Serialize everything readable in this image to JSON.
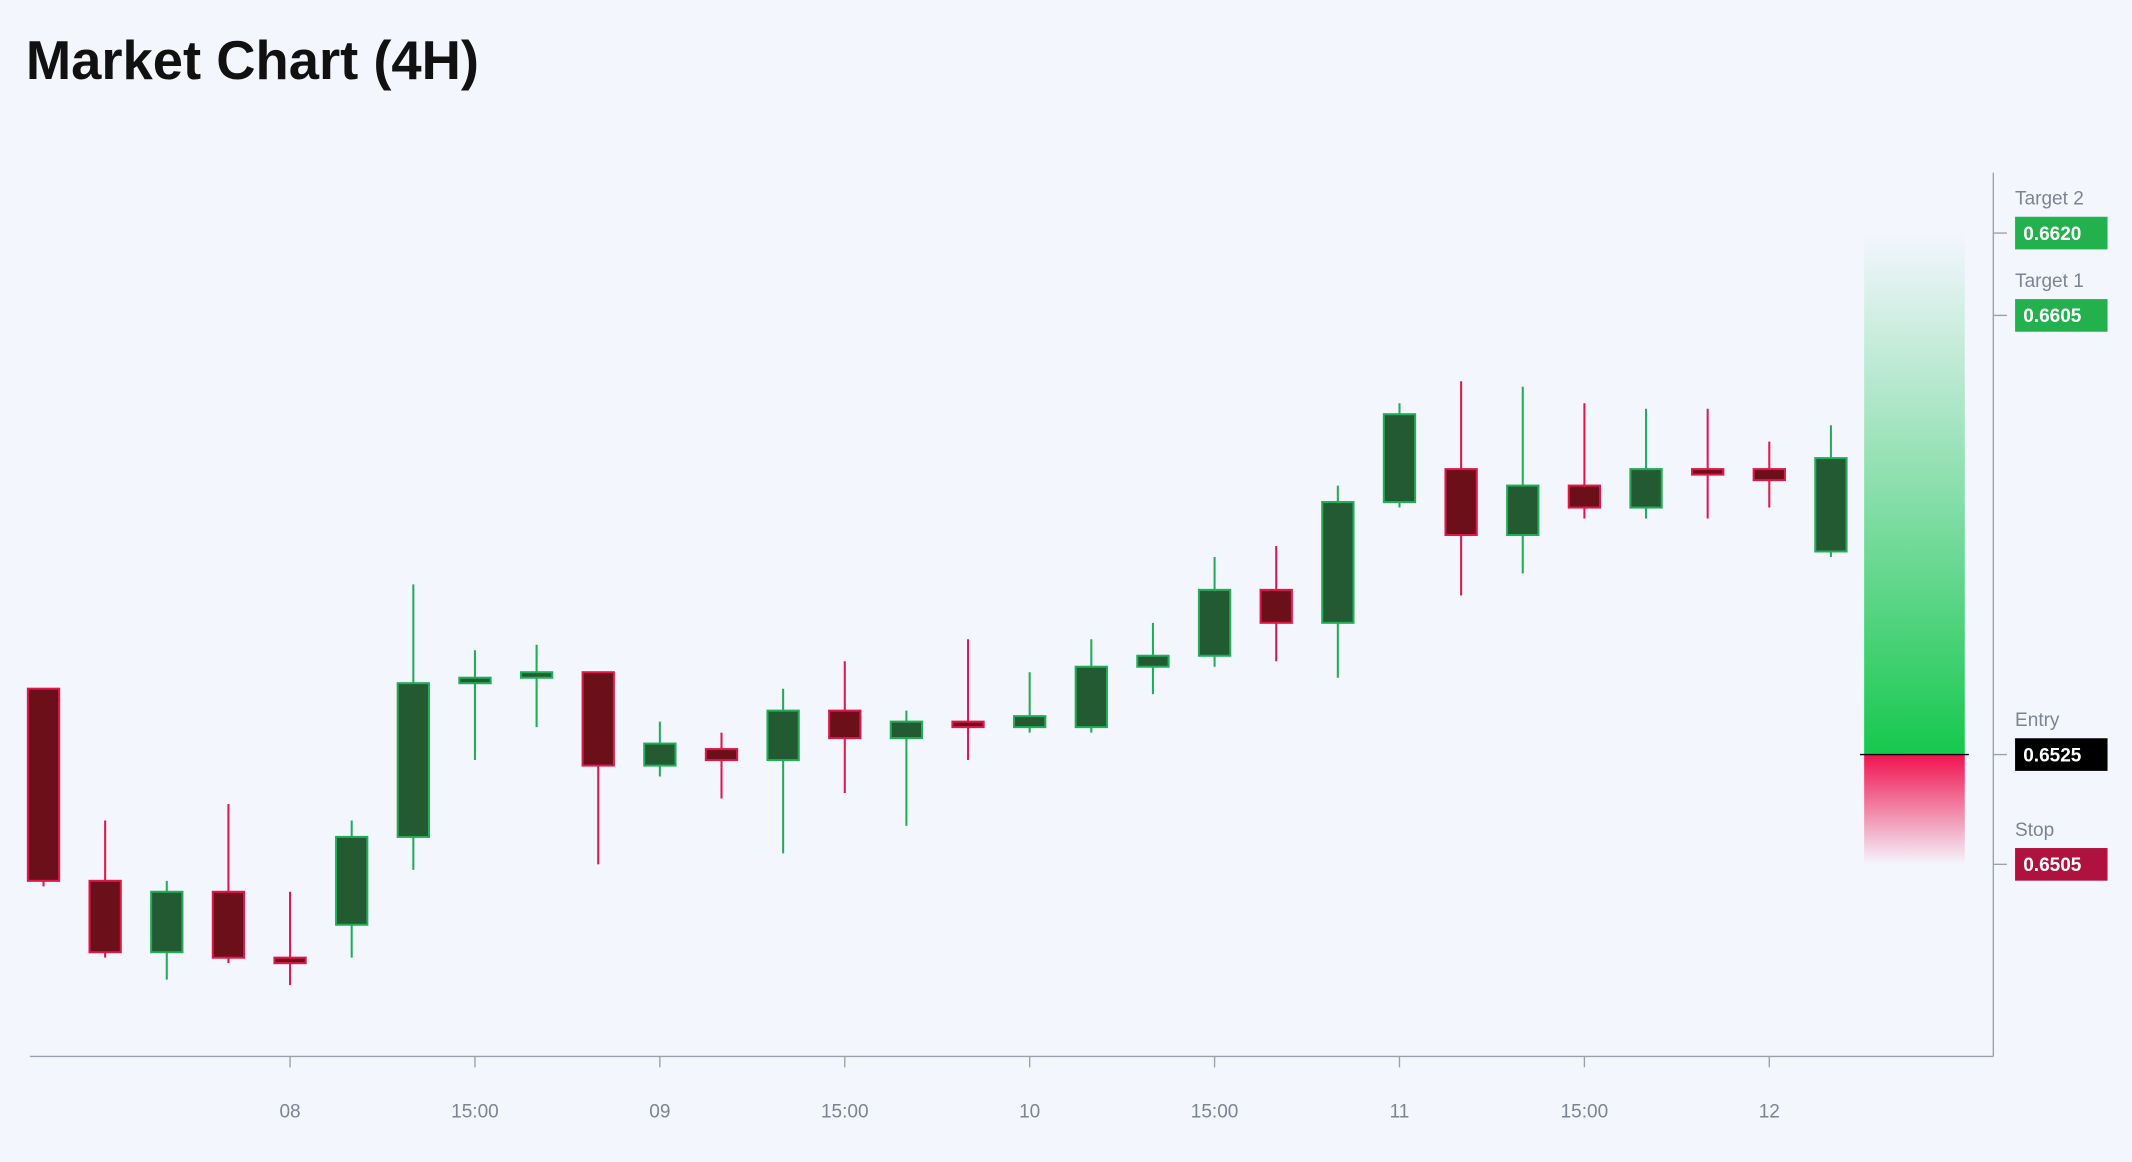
{
  "chart_data": {
    "type": "candlestick",
    "title": "Market Chart (4H)",
    "categories": [
      null,
      null,
      null,
      null,
      "08",
      null,
      null,
      "15:00",
      null,
      null,
      "09",
      null,
      null,
      "15:00",
      null,
      null,
      "10",
      null,
      null,
      "15:00",
      null,
      null,
      "11",
      null,
      null,
      "15:00",
      null,
      null,
      "12",
      null
    ],
    "open": [
      0.6537,
      0.6502,
      0.6489,
      0.65,
      0.6488,
      0.6494,
      0.651,
      0.6538,
      0.6539,
      0.654,
      0.6523,
      0.6526,
      0.6524,
      0.6533,
      0.6528,
      0.6531,
      0.653,
      0.653,
      0.6541,
      0.6543,
      0.6555,
      0.6549,
      0.6571,
      0.6577,
      0.6565,
      0.6574,
      0.657,
      0.6577,
      0.6577,
      0.6562
    ],
    "high": [
      0.6537,
      0.6513,
      0.6502,
      0.6516,
      0.65,
      0.6513,
      0.6556,
      0.6544,
      0.6545,
      0.654,
      0.6531,
      0.6529,
      0.6537,
      0.6542,
      0.6533,
      0.6546,
      0.654,
      0.6546,
      0.6549,
      0.6561,
      0.6563,
      0.6574,
      0.6589,
      0.6593,
      0.6592,
      0.6589,
      0.6588,
      0.6588,
      0.6582,
      0.6585
    ],
    "low": [
      0.6501,
      0.6488,
      0.6484,
      0.6487,
      0.6483,
      0.6488,
      0.6504,
      0.6524,
      0.653,
      0.6505,
      0.6521,
      0.6517,
      0.6507,
      0.6518,
      0.6512,
      0.6524,
      0.6529,
      0.6529,
      0.6536,
      0.6541,
      0.6542,
      0.6539,
      0.657,
      0.6554,
      0.6558,
      0.6568,
      0.6568,
      0.6568,
      0.657,
      0.6561
    ],
    "close": [
      0.6502,
      0.6489,
      0.65,
      0.6488,
      0.6487,
      0.651,
      0.6538,
      0.6539,
      0.654,
      0.6523,
      0.6527,
      0.6524,
      0.6533,
      0.6528,
      0.6531,
      0.653,
      0.6532,
      0.6541,
      0.6543,
      0.6555,
      0.6549,
      0.6571,
      0.6587,
      0.6565,
      0.6574,
      0.657,
      0.6577,
      0.6576,
      0.6575,
      0.6579
    ],
    "up_color": "#1fae55",
    "up_fill": "#235a32",
    "down_color": "#e0174a",
    "down_fill": "#6b1018",
    "ylim": [
      0.647,
      0.6631
    ],
    "levels": [
      {
        "name": "Target 2",
        "value": 0.662,
        "label": "0.6620",
        "color": "#22b14c"
      },
      {
        "name": "Target 1",
        "value": 0.6605,
        "label": "0.6605",
        "color": "#22b14c"
      },
      {
        "name": "Entry",
        "value": 0.6525,
        "label": "0.6525",
        "color": "#000000"
      },
      {
        "name": "Stop",
        "value": 0.6505,
        "label": "0.6505",
        "color": "#b0123e"
      }
    ]
  }
}
